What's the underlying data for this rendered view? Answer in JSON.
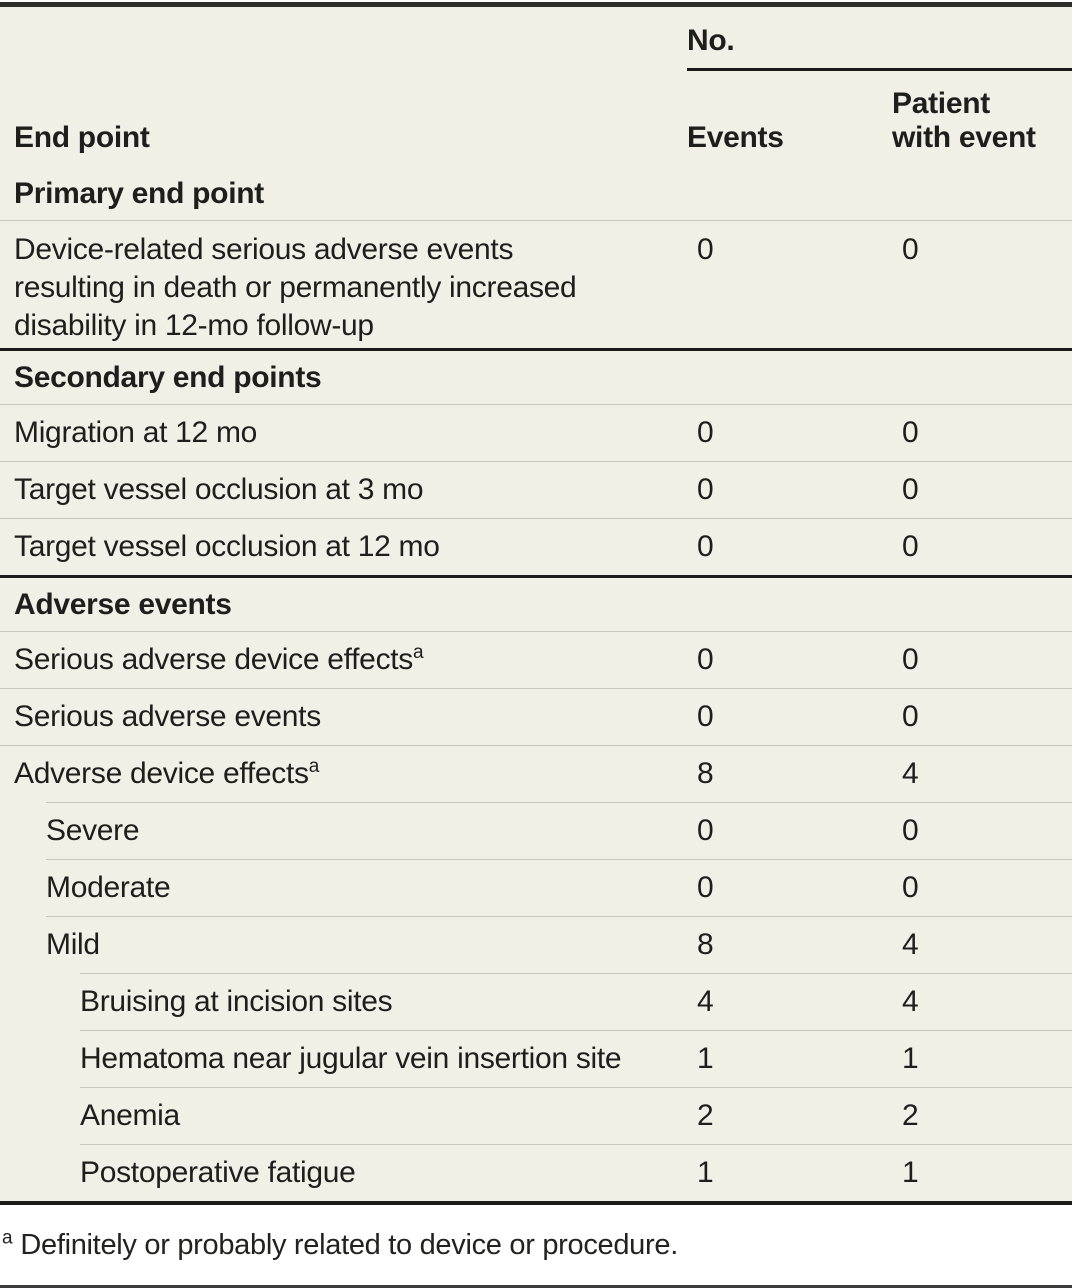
{
  "colors": {
    "table_background": "#f0f0e7",
    "rule_dark": "#1b1b19",
    "rule_light": "#c7c7bc",
    "text": "#1e1e1c"
  },
  "header": {
    "endpoint_label": "End point",
    "group_label": "No.",
    "col_events": "Events",
    "col_patient": "Patient\nwith event"
  },
  "table": {
    "rows": [
      {
        "type": "section",
        "label": "Primary end point",
        "thick": false
      },
      {
        "type": "data",
        "label": "Device-related serious adverse events\nresulting in death or permanently increased\ndisability in 12-mo follow-up",
        "events": 0,
        "patients": 0,
        "indent": 1,
        "divider": "full",
        "tall": true
      },
      {
        "type": "section",
        "label": "Secondary end points",
        "thick": true
      },
      {
        "type": "data",
        "label": "Migration at 12 mo",
        "events": 0,
        "patients": 0,
        "indent": 1,
        "divider": "full"
      },
      {
        "type": "data",
        "label": "Target vessel occlusion at 3 mo",
        "events": 0,
        "patients": 0,
        "indent": 1,
        "divider": "full"
      },
      {
        "type": "data",
        "label": "Target vessel occlusion at 12 mo",
        "events": 0,
        "patients": 0,
        "indent": 1,
        "divider": "full"
      },
      {
        "type": "section",
        "label": "Adverse events",
        "thick": true
      },
      {
        "type": "data",
        "label": "Serious adverse device effects",
        "sup": "a",
        "events": 0,
        "patients": 0,
        "indent": 1,
        "divider": "full"
      },
      {
        "type": "data",
        "label": "Serious adverse events",
        "events": 0,
        "patients": 0,
        "indent": 1,
        "divider": "full"
      },
      {
        "type": "data",
        "label": "Adverse device effects",
        "sup": "a",
        "events": 8,
        "patients": 4,
        "indent": 1,
        "divider": "full"
      },
      {
        "type": "data",
        "label": "Severe",
        "events": 0,
        "patients": 0,
        "indent": 2,
        "divider": "l2"
      },
      {
        "type": "data",
        "label": "Moderate",
        "events": 0,
        "patients": 0,
        "indent": 2,
        "divider": "l2"
      },
      {
        "type": "data",
        "label": "Mild",
        "events": 8,
        "patients": 4,
        "indent": 2,
        "divider": "l2"
      },
      {
        "type": "data",
        "label": "Bruising at incision sites",
        "events": 4,
        "patients": 4,
        "indent": 3,
        "divider": "l3"
      },
      {
        "type": "data",
        "label": "Hematoma near jugular vein insertion site",
        "events": 1,
        "patients": 1,
        "indent": 3,
        "divider": "l3"
      },
      {
        "type": "data",
        "label": "Anemia",
        "events": 2,
        "patients": 2,
        "indent": 3,
        "divider": "l3"
      },
      {
        "type": "data",
        "label": "Postoperative fatigue",
        "events": 1,
        "patients": 1,
        "indent": 3,
        "divider": "l3"
      }
    ]
  },
  "footnote": {
    "marker": "a",
    "text": "Definitely or probably related to device or procedure."
  }
}
